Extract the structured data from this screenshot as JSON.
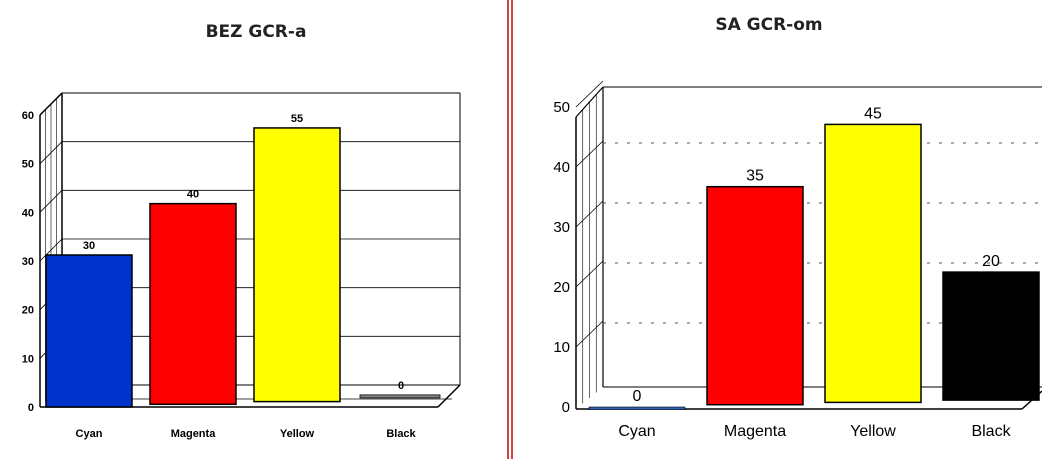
{
  "chart_data": [
    {
      "type": "bar",
      "title": "BEZ GCR-a",
      "categories": [
        "Cyan",
        "Magenta",
        "Yellow",
        "Black"
      ],
      "values": [
        30,
        40,
        55,
        0
      ],
      "ylim": [
        0,
        60
      ],
      "yticks": [
        "0",
        "10",
        "20",
        "30",
        "40",
        "50",
        "60"
      ],
      "xlabel": "",
      "ylabel": "",
      "grid": true,
      "bar_colors": [
        "#0033cc",
        "#ff0000",
        "#ffff00",
        "#ffffff"
      ]
    },
    {
      "type": "bar",
      "title": "SA GCR-om",
      "categories": [
        "Cyan",
        "Magenta",
        "Yellow",
        "Black"
      ],
      "values": [
        0,
        35,
        45,
        20
      ],
      "ylim": [
        0,
        50
      ],
      "yticks": [
        "0",
        "10",
        "20",
        "30",
        "40",
        "50"
      ],
      "xlabel": "",
      "ylabel": "",
      "grid": true,
      "bar_colors": [
        "#2b62c0",
        "#ff0000",
        "#ffff00",
        "#000000"
      ]
    }
  ],
  "divider_color": "#cc0000"
}
